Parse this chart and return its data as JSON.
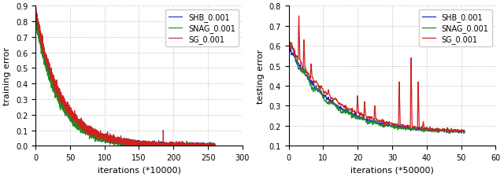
{
  "left": {
    "xlabel": "iterations (*10000)",
    "ylabel": "training error",
    "xlim": [
      0,
      300
    ],
    "ylim": [
      0,
      0.9
    ],
    "yticks": [
      0.0,
      0.1,
      0.2,
      0.3,
      0.4,
      0.5,
      0.6,
      0.7,
      0.8,
      0.9
    ],
    "xticks": [
      0,
      50,
      100,
      150,
      200,
      250,
      300
    ],
    "legend": [
      "SHB_0.001",
      "SNAG_0.001",
      "SG_0.001"
    ],
    "colors": [
      "#2222cc",
      "#228822",
      "#cc2222"
    ]
  },
  "right": {
    "xlabel": "iterations (*50000)",
    "ylabel": "testing error",
    "xlim": [
      0,
      60
    ],
    "ylim": [
      0.1,
      0.8
    ],
    "yticks": [
      0.1,
      0.2,
      0.3,
      0.4,
      0.5,
      0.6,
      0.7,
      0.8
    ],
    "xticks": [
      0,
      10,
      20,
      30,
      40,
      50,
      60
    ],
    "legend": [
      "SHB_0.001",
      "SNAG_0.001",
      "SG_0.001"
    ],
    "colors": [
      "#2222cc",
      "#228822",
      "#cc2222"
    ]
  },
  "background_color": "#ffffff",
  "grid_color": "#888888"
}
